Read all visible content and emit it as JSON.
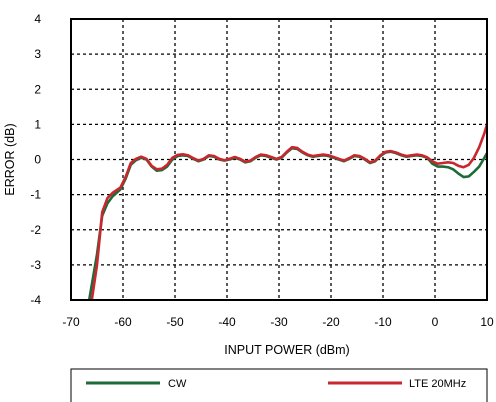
{
  "chart_data": {
    "type": "line",
    "xlabel": "INPUT POWER (dBm)",
    "ylabel": "ERROR (dB)",
    "xlim": [
      -70,
      10
    ],
    "ylim": [
      -4,
      4
    ],
    "xticks": [
      "-70",
      "-60",
      "-50",
      "-40",
      "-30",
      "-20",
      "-10",
      "0",
      "10"
    ],
    "yticks": [
      "4",
      "3",
      "2",
      "1",
      "0",
      "-1",
      "-2",
      "-3",
      "-4"
    ],
    "grid": true,
    "legend_position": "bottom",
    "series": [
      {
        "name": "CW",
        "color": "#1e6b3a",
        "points": [
          [
            -66.5,
            -4.0
          ],
          [
            -65,
            -2.7
          ],
          [
            -64,
            -1.6
          ],
          [
            -63,
            -1.25
          ],
          [
            -62,
            -1.05
          ],
          [
            -60.5,
            -0.85
          ],
          [
            -59.5,
            -0.55
          ],
          [
            -58.5,
            -0.15
          ],
          [
            -57.5,
            -0.02
          ],
          [
            -56.5,
            0.05
          ],
          [
            -55.5,
            0.0
          ],
          [
            -54.5,
            -0.2
          ],
          [
            -53.5,
            -0.32
          ],
          [
            -52.5,
            -0.3
          ],
          [
            -51.5,
            -0.2
          ],
          [
            -50.5,
            0.0
          ],
          [
            -49.5,
            0.1
          ],
          [
            -48.5,
            0.12
          ],
          [
            -47.5,
            0.1
          ],
          [
            -46.5,
            0.02
          ],
          [
            -45.5,
            -0.05
          ],
          [
            -44.5,
            0.0
          ],
          [
            -43.5,
            0.1
          ],
          [
            -42.5,
            0.08
          ],
          [
            -41.5,
            0.0
          ],
          [
            -40.5,
            -0.03
          ],
          [
            -39.5,
            0.0
          ],
          [
            -38.5,
            0.05
          ],
          [
            -37.5,
            0.0
          ],
          [
            -36.5,
            -0.08
          ],
          [
            -35.5,
            -0.05
          ],
          [
            -34.5,
            0.05
          ],
          [
            -33.5,
            0.12
          ],
          [
            -32.5,
            0.1
          ],
          [
            -31.5,
            0.05
          ],
          [
            -30.5,
            0.0
          ],
          [
            -29.5,
            0.05
          ],
          [
            -28.5,
            0.2
          ],
          [
            -27.5,
            0.32
          ],
          [
            -26.5,
            0.3
          ],
          [
            -25.5,
            0.2
          ],
          [
            -24.5,
            0.12
          ],
          [
            -23.5,
            0.08
          ],
          [
            -22.5,
            0.1
          ],
          [
            -21.5,
            0.12
          ],
          [
            -20.5,
            0.1
          ],
          [
            -19.5,
            0.05
          ],
          [
            -18.5,
            0.0
          ],
          [
            -17.5,
            -0.05
          ],
          [
            -16.5,
            0.02
          ],
          [
            -15.5,
            0.1
          ],
          [
            -14.5,
            0.08
          ],
          [
            -13.5,
            0.0
          ],
          [
            -12.5,
            -0.1
          ],
          [
            -11.5,
            -0.05
          ],
          [
            -10.5,
            0.1
          ],
          [
            -9.5,
            0.2
          ],
          [
            -8.5,
            0.22
          ],
          [
            -7.5,
            0.18
          ],
          [
            -6.5,
            0.12
          ],
          [
            -5.5,
            0.08
          ],
          [
            -4.5,
            0.1
          ],
          [
            -3.5,
            0.12
          ],
          [
            -2.5,
            0.1
          ],
          [
            -1.5,
            0.05
          ],
          [
            -0.5,
            -0.12
          ],
          [
            0.5,
            -0.2
          ],
          [
            1.5,
            -0.2
          ],
          [
            2.5,
            -0.22
          ],
          [
            3.5,
            -0.28
          ],
          [
            4.5,
            -0.4
          ],
          [
            5.5,
            -0.5
          ],
          [
            6.5,
            -0.48
          ],
          [
            7.5,
            -0.35
          ],
          [
            8.5,
            -0.2
          ],
          [
            9.5,
            0.05
          ],
          [
            10,
            0.18
          ]
        ]
      },
      {
        "name": "LTE 20MHz",
        "color": "#c8282d",
        "points": [
          [
            -66,
            -4.0
          ],
          [
            -65,
            -3.0
          ],
          [
            -64,
            -1.5
          ],
          [
            -63,
            -1.1
          ],
          [
            -62,
            -0.95
          ],
          [
            -60.5,
            -0.8
          ],
          [
            -59.5,
            -0.5
          ],
          [
            -58.5,
            -0.1
          ],
          [
            -57.5,
            0.02
          ],
          [
            -56.5,
            0.08
          ],
          [
            -55.5,
            0.02
          ],
          [
            -54.5,
            -0.18
          ],
          [
            -53.5,
            -0.28
          ],
          [
            -52.5,
            -0.26
          ],
          [
            -51.5,
            -0.15
          ],
          [
            -50.5,
            0.05
          ],
          [
            -49.5,
            0.13
          ],
          [
            -48.5,
            0.15
          ],
          [
            -47.5,
            0.12
          ],
          [
            -46.5,
            0.04
          ],
          [
            -45.5,
            -0.03
          ],
          [
            -44.5,
            0.02
          ],
          [
            -43.5,
            0.12
          ],
          [
            -42.5,
            0.1
          ],
          [
            -41.5,
            0.02
          ],
          [
            -40.5,
            -0.02
          ],
          [
            -39.5,
            0.02
          ],
          [
            -38.5,
            0.07
          ],
          [
            -37.5,
            0.02
          ],
          [
            -36.5,
            -0.06
          ],
          [
            -35.5,
            -0.03
          ],
          [
            -34.5,
            0.07
          ],
          [
            -33.5,
            0.14
          ],
          [
            -32.5,
            0.12
          ],
          [
            -31.5,
            0.07
          ],
          [
            -30.5,
            0.02
          ],
          [
            -29.5,
            0.07
          ],
          [
            -28.5,
            0.22
          ],
          [
            -27.5,
            0.35
          ],
          [
            -26.5,
            0.33
          ],
          [
            -25.5,
            0.22
          ],
          [
            -24.5,
            0.14
          ],
          [
            -23.5,
            0.1
          ],
          [
            -22.5,
            0.12
          ],
          [
            -21.5,
            0.14
          ],
          [
            -20.5,
            0.12
          ],
          [
            -19.5,
            0.07
          ],
          [
            -18.5,
            0.02
          ],
          [
            -17.5,
            -0.03
          ],
          [
            -16.5,
            0.04
          ],
          [
            -15.5,
            0.12
          ],
          [
            -14.5,
            0.1
          ],
          [
            -13.5,
            0.02
          ],
          [
            -12.5,
            -0.08
          ],
          [
            -11.5,
            -0.03
          ],
          [
            -10.5,
            0.12
          ],
          [
            -9.5,
            0.22
          ],
          [
            -8.5,
            0.24
          ],
          [
            -7.5,
            0.2
          ],
          [
            -6.5,
            0.14
          ],
          [
            -5.5,
            0.1
          ],
          [
            -4.5,
            0.12
          ],
          [
            -3.5,
            0.14
          ],
          [
            -2.5,
            0.12
          ],
          [
            -1.5,
            0.06
          ],
          [
            -0.5,
            -0.05
          ],
          [
            0.5,
            -0.12
          ],
          [
            1.5,
            -0.1
          ],
          [
            2.5,
            -0.08
          ],
          [
            3.5,
            -0.1
          ],
          [
            4.5,
            -0.18
          ],
          [
            5.5,
            -0.22
          ],
          [
            6.5,
            -0.15
          ],
          [
            7.5,
            0.05
          ],
          [
            8.5,
            0.35
          ],
          [
            9.5,
            0.75
          ],
          [
            10,
            1.0
          ]
        ]
      }
    ]
  }
}
